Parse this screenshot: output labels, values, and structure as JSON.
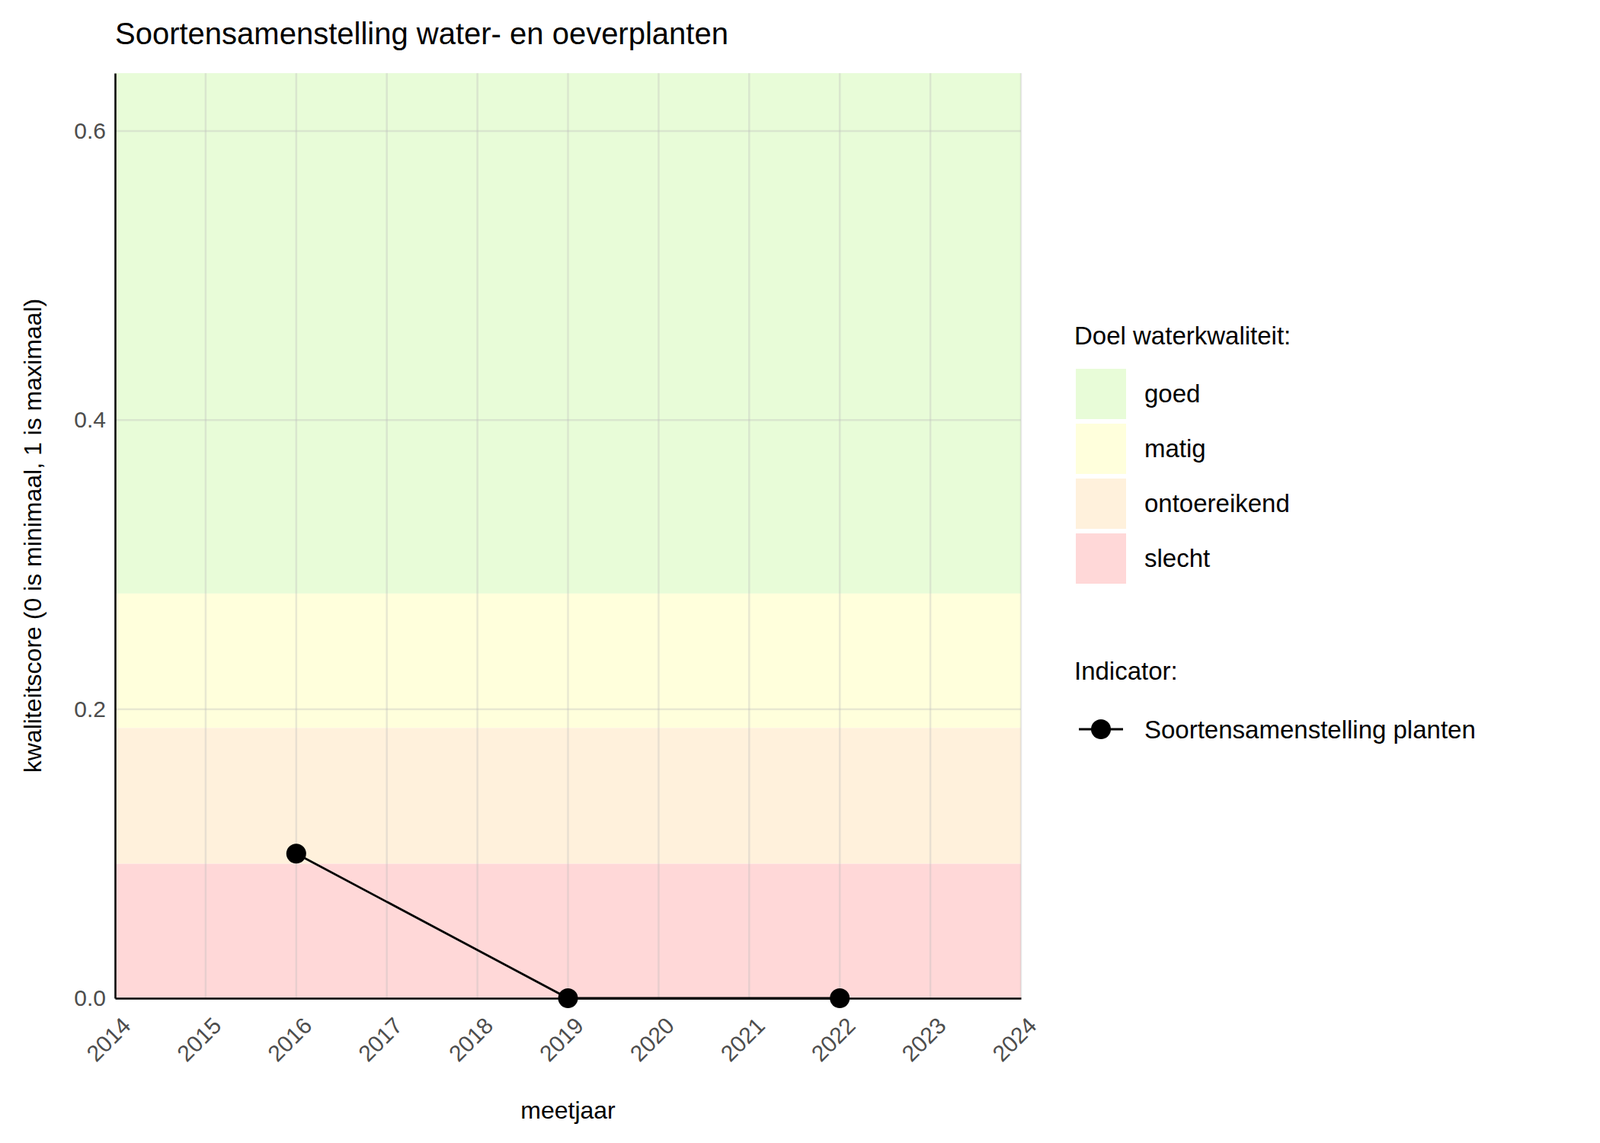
{
  "chart_data": {
    "type": "line",
    "title": "Soortensamenstelling water- en oeverplanten",
    "x_label": "meetjaar",
    "y_label": "kwaliteitscore (0 is minimaal, 1 is maximaal)",
    "x": [
      2016,
      2019,
      2022
    ],
    "series": [
      {
        "name": "Soortensamenstelling planten",
        "color": "#000000",
        "marker": "circle",
        "line_style": "solid",
        "values": [
          0.1,
          0,
          0
        ]
      }
    ],
    "bands_title": "Doel waterkwaliteit:",
    "series_legend_title": "Indicator:",
    "bands": [
      {
        "name": "goed",
        "color": "#e8fcd8",
        "lower": 0.28,
        "upper": 0.64
      },
      {
        "name": "matig",
        "color": "#ffffdc",
        "lower": 0.187,
        "upper": 0.28
      },
      {
        "name": "ontoereikend",
        "color": "#fff1dc",
        "lower": 0.093,
        "upper": 0.187
      },
      {
        "name": "slecht",
        "color": "#ffd8d8",
        "lower": 0,
        "upper": 0.093
      }
    ],
    "xlim": [
      2014,
      2024
    ],
    "xticks": [
      2014,
      2015,
      2016,
      2017,
      2018,
      2019,
      2020,
      2021,
      2022,
      2023,
      2024
    ],
    "ylim": [
      0,
      0.64
    ],
    "yticks": [
      {
        "value": 0,
        "label": "0.0"
      },
      0.2,
      0.4,
      0.6
    ],
    "grid": true
  }
}
